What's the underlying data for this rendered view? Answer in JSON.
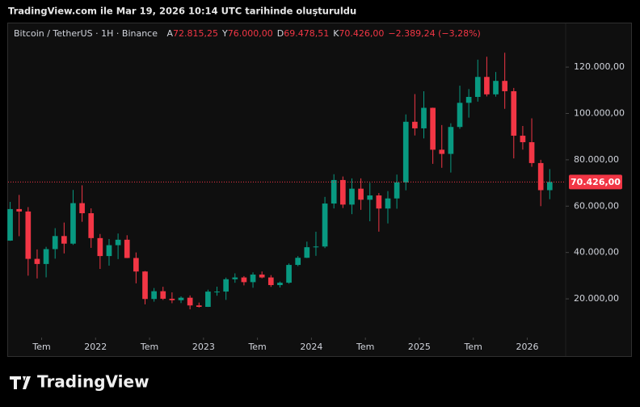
{
  "caption": "TradingView.com ile Mar 19, 2026 10:14 UTC tarihinde oluşturuldu",
  "chart_data": {
    "type": "candlestick",
    "title": "Bitcoin / TetherUS · 1H · Binance",
    "ohlc_labels": [
      {
        "label": "A",
        "value": "72.815,25"
      },
      {
        "label": "Y",
        "value": "76.000,00"
      },
      {
        "label": "D",
        "value": "69.478,51"
      },
      {
        "label": "K",
        "value": "70.426,00"
      }
    ],
    "change": "−2.389,24 (−3,28%)",
    "up_color": "#089981",
    "down_color": "#f23645",
    "x": [
      "2021-03",
      "2021-04",
      "2021-05",
      "2021-06",
      "2021-07",
      "2021-08",
      "2021-09",
      "2021-10",
      "2021-11",
      "2021-12",
      "2022-01",
      "2022-02",
      "2022-03",
      "2022-04",
      "2022-05",
      "2022-06",
      "2022-07",
      "2022-08",
      "2022-09",
      "2022-10",
      "2022-11",
      "2022-12",
      "2023-01",
      "2023-02",
      "2023-03",
      "2023-04",
      "2023-05",
      "2023-06",
      "2023-07",
      "2023-08",
      "2023-09",
      "2023-10",
      "2023-11",
      "2023-12",
      "2024-01",
      "2024-02",
      "2024-03",
      "2024-04",
      "2024-05",
      "2024-06",
      "2024-07",
      "2024-08",
      "2024-09",
      "2024-10",
      "2024-11",
      "2024-12",
      "2025-01",
      "2025-02",
      "2025-03",
      "2025-04",
      "2025-05",
      "2025-06",
      "2025-07",
      "2025-08",
      "2025-09",
      "2025-10",
      "2025-11",
      "2025-12",
      "2026-01",
      "2026-02",
      "2026-03"
    ],
    "open": [
      45135,
      58741,
      57697,
      37254,
      35045,
      41461,
      47100,
      43820,
      61300,
      56951,
      46216,
      38466,
      43160,
      45510,
      37630,
      31801,
      19942,
      23296,
      20048,
      19423,
      20490,
      17165,
      16541,
      23125,
      23141,
      28465,
      29233,
      27210,
      30472,
      29232,
      25940,
      26962,
      34639,
      37723,
      42284,
      42580,
      61131,
      71280,
      60672,
      67540,
      62773,
      64628,
      58974,
      63327,
      70216,
      96408,
      93576,
      102430,
      84350,
      82550,
      94172,
      104592,
      107136,
      115764,
      108246,
      114049,
      109600,
      90400,
      87600,
      78600,
      66900
    ],
    "high": [
      61844,
      64854,
      59592,
      41330,
      42448,
      50500,
      52920,
      67000,
      69000,
      59054,
      47990,
      45821,
      48189,
      47444,
      40023,
      31986,
      24668,
      25211,
      22799,
      21085,
      21480,
      18387,
      23960,
      25250,
      29184,
      31000,
      29820,
      31431,
      31804,
      30244,
      27483,
      35280,
      38450,
      44700,
      48969,
      64000,
      73777,
      72797,
      71979,
      71997,
      70079,
      65659,
      66498,
      73620,
      99588,
      108353,
      109588,
      102500,
      95000,
      95758,
      111980,
      110530,
      123218,
      124474,
      117900,
      126200,
      111000,
      94600,
      97900,
      80000,
      76000
    ],
    "low": [
      45000,
      47044,
      30000,
      28805,
      29278,
      37332,
      39600,
      43283,
      53256,
      42000,
      32917,
      34322,
      37155,
      37578,
      26700,
      17622,
      18781,
      19520,
      18125,
      18190,
      15476,
      16256,
      16499,
      21351,
      19549,
      26942,
      25811,
      24800,
      28861,
      25166,
      24901,
      26538,
      34097,
      37615,
      38555,
      41884,
      59005,
      59191,
      56552,
      58402,
      53485,
      49000,
      52550,
      58895,
      66835,
      90500,
      89256,
      78258,
      76555,
      74508,
      93377,
      98200,
      105100,
      107350,
      107255,
      102000,
      80600,
      84400,
      77000,
      60000,
      63000
    ],
    "close": [
      58741,
      57694,
      37253,
      35045,
      41462,
      47100,
      43824,
      61300,
      56950,
      46216,
      38466,
      43160,
      45510,
      37630,
      31801,
      19942,
      23293,
      20050,
      19423,
      20490,
      17164,
      16542,
      23125,
      23141,
      28465,
      29233,
      27210,
      30472,
      29232,
      25940,
      26962,
      34639,
      37723,
      42283,
      42580,
      61130,
      71280,
      60672,
      67540,
      62772,
      64628,
      58974,
      63327,
      70215,
      96407,
      93576,
      102430,
      84350,
      82550,
      94172,
      104592,
      107136,
      115764,
      108246,
      114049,
      109600,
      90400,
      87600,
      78600,
      66900,
      70426
    ],
    "xlim": [
      "2021-03",
      "2026-05"
    ],
    "xticks": [
      {
        "value": "2021-07",
        "label": "Tem"
      },
      {
        "value": "2022-01",
        "label": "2022"
      },
      {
        "value": "2022-07",
        "label": "Tem"
      },
      {
        "value": "2023-01",
        "label": "2023"
      },
      {
        "value": "2023-07",
        "label": "Tem"
      },
      {
        "value": "2024-01",
        "label": "2024"
      },
      {
        "value": "2024-07",
        "label": "Tem"
      },
      {
        "value": "2025-01",
        "label": "2025"
      },
      {
        "value": "2025-07",
        "label": "Tem"
      },
      {
        "value": "2026-01",
        "label": "2026"
      }
    ],
    "ylim": [
      3300,
      139200
    ],
    "yticks": [
      {
        "value": 20000,
        "label": "20.000,00"
      },
      {
        "value": 40000,
        "label": "40.000,00"
      },
      {
        "value": 60000,
        "label": "60.000,00"
      },
      {
        "value": 80000,
        "label": "80.000,00"
      },
      {
        "value": 100000,
        "label": "100.000,00"
      },
      {
        "value": 120000,
        "label": "120.000,00"
      }
    ],
    "last_price": {
      "value": 70426,
      "label": "70.426,00"
    },
    "grid": false
  },
  "footer": {
    "logo": "TradingView"
  }
}
